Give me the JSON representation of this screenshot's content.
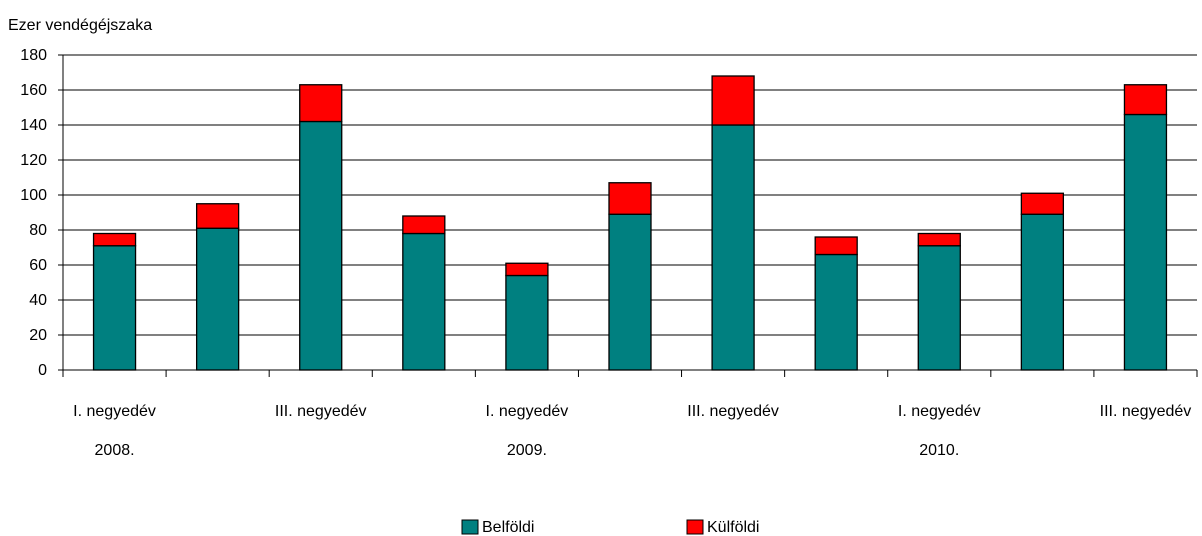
{
  "chart_data": {
    "type": "bar",
    "stacked": true,
    "ylabel": "Ezer vendégéjszaka",
    "ylim": [
      0,
      180
    ],
    "yticks": [
      0,
      20,
      40,
      60,
      80,
      100,
      120,
      140,
      160,
      180
    ],
    "grid": true,
    "legend_position": "bottom",
    "x_tick_labels": [
      {
        "label": "I. negyedév",
        "index": 0
      },
      {
        "label": "III. negyedév",
        "index": 2
      },
      {
        "label": "I. negyedév",
        "index": 4
      },
      {
        "label": "III. negyedév",
        "index": 6
      },
      {
        "label": "I. negyedév",
        "index": 8
      },
      {
        "label": "III. negyedév",
        "index": 10
      }
    ],
    "year_labels": [
      {
        "label": "2008.",
        "index": 0
      },
      {
        "label": "2009.",
        "index": 4
      },
      {
        "label": "2010.",
        "index": 8
      }
    ],
    "series": [
      {
        "name": "Belföldi",
        "color": "#008080",
        "values": [
          71,
          81,
          142,
          78,
          54,
          89,
          140,
          66,
          71,
          89,
          146
        ]
      },
      {
        "name": "Külföldi",
        "color": "#ff0000",
        "values": [
          7,
          14,
          21,
          10,
          7,
          18,
          28,
          10,
          7,
          12,
          17
        ]
      }
    ]
  }
}
